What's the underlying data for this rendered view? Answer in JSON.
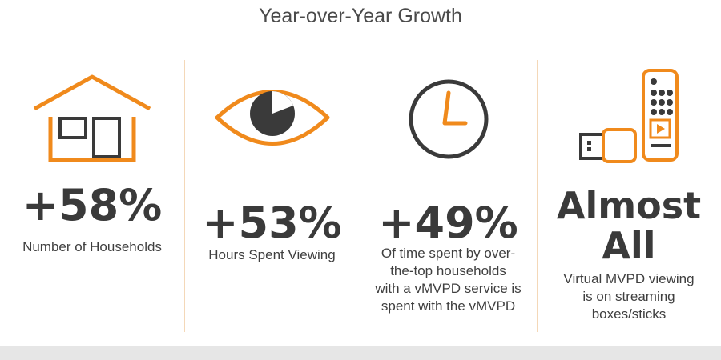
{
  "header": {
    "title": "Year-over-Year Growth"
  },
  "colors": {
    "accent": "#f08a1c",
    "dark": "#3a3a3a",
    "divider": "#f4d8b8"
  },
  "stats": [
    {
      "icon": "house-icon",
      "value": "+58%",
      "caption": [
        "Number of Households"
      ]
    },
    {
      "icon": "eye-icon",
      "value": "+53%",
      "caption": [
        "Hours Spent Viewing"
      ]
    },
    {
      "icon": "clock-icon",
      "value": "+49%",
      "caption": [
        "Of time spent by over-",
        "the-top households",
        "with a vMVPD service is",
        "spent with the vMVPD"
      ]
    },
    {
      "icon": "streaming-devices-icon",
      "value": [
        "Almost",
        "All"
      ],
      "caption": [
        "Virtual MVPD viewing",
        "is on streaming",
        "boxes/sticks"
      ]
    }
  ]
}
